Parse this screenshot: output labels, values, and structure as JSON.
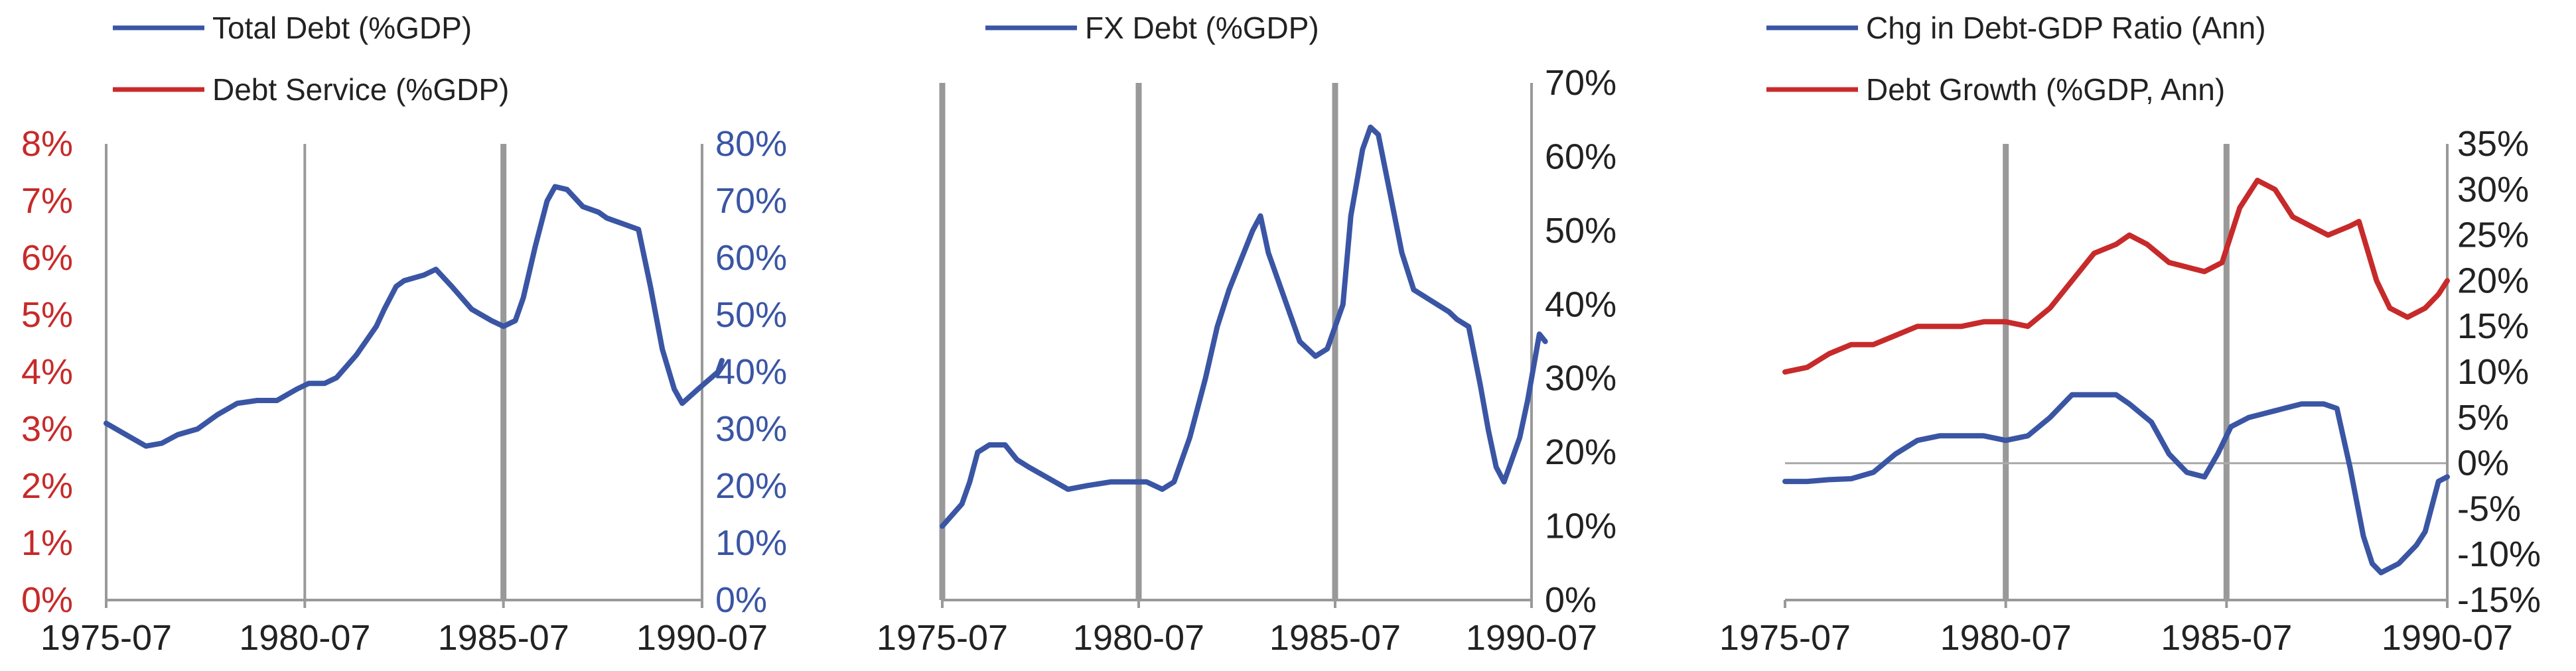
{
  "colors": {
    "blue": "#3a55a4",
    "red": "#c72a2a",
    "vline": "#999999",
    "axis": "#999999"
  },
  "chart_data": [
    {
      "type": "line",
      "legend_placement": "top",
      "x_ticks": [
        "1975-07",
        "1980-07",
        "1985-07",
        "1990-07"
      ],
      "xlim": [
        1975.5,
        1990.5
      ],
      "vlines": [
        {
          "x": 1980.5,
          "weight": "thin"
        },
        {
          "x": 1985.5,
          "weight": "thick"
        }
      ],
      "left_axis": {
        "ticks": [
          "0%",
          "1%",
          "2%",
          "3%",
          "4%",
          "5%",
          "6%",
          "7%",
          "8%"
        ],
        "ylim": [
          0,
          8
        ],
        "color": "red"
      },
      "right_axis": {
        "ticks": [
          "0%",
          "10%",
          "20%",
          "30%",
          "40%",
          "50%",
          "60%",
          "70%",
          "80%"
        ],
        "ylim": [
          0,
          80
        ],
        "color": "blue"
      },
      "series": [
        {
          "name": "Total Debt (%GDP)",
          "color": "blue",
          "axis": "right",
          "points": [
            [
              1975.5,
              31
            ],
            [
              1976.0,
              29
            ],
            [
              1976.5,
              27
            ],
            [
              1976.9,
              27.5
            ],
            [
              1977.3,
              29
            ],
            [
              1977.8,
              30
            ],
            [
              1978.3,
              32.5
            ],
            [
              1978.8,
              34.5
            ],
            [
              1979.3,
              35
            ],
            [
              1979.8,
              35
            ],
            [
              1980.3,
              37
            ],
            [
              1980.6,
              38
            ],
            [
              1981.0,
              38
            ],
            [
              1981.3,
              39
            ],
            [
              1981.8,
              43
            ],
            [
              1982.3,
              48
            ],
            [
              1982.5,
              51
            ],
            [
              1982.8,
              55
            ],
            [
              1983.0,
              56
            ],
            [
              1983.5,
              57
            ],
            [
              1983.8,
              58
            ],
            [
              1984.2,
              55
            ],
            [
              1984.7,
              51
            ],
            [
              1985.2,
              49
            ],
            [
              1985.5,
              48
            ],
            [
              1985.8,
              49
            ],
            [
              1986.0,
              53
            ],
            [
              1986.3,
              62
            ],
            [
              1986.6,
              70
            ],
            [
              1986.8,
              72.5
            ],
            [
              1987.1,
              72
            ],
            [
              1987.5,
              69
            ],
            [
              1987.9,
              68
            ],
            [
              1988.1,
              67
            ],
            [
              1988.5,
              66
            ],
            [
              1988.9,
              65
            ],
            [
              1989.2,
              55
            ],
            [
              1989.5,
              44
            ],
            [
              1989.8,
              37
            ],
            [
              1990.0,
              34.5
            ],
            [
              1990.4,
              37
            ],
            [
              1990.9,
              40
            ],
            [
              1991.0,
              42
            ]
          ]
        },
        {
          "name": "Debt Service (%GDP)",
          "color": "red",
          "axis": "left",
          "points": []
        }
      ]
    },
    {
      "type": "line",
      "legend_placement": "top",
      "x_ticks": [
        "1975-07",
        "1980-07",
        "1985-07",
        "1990-07"
      ],
      "xlim": [
        1975.5,
        1990.5
      ],
      "vlines": [
        {
          "x": 1975.5,
          "weight": "thick"
        },
        {
          "x": 1980.5,
          "weight": "thick"
        },
        {
          "x": 1985.5,
          "weight": "thick"
        }
      ],
      "right_axis": {
        "ticks": [
          "0%",
          "10%",
          "20%",
          "30%",
          "40%",
          "50%",
          "60%",
          "70%"
        ],
        "ylim": [
          0,
          70
        ],
        "color": "dark"
      },
      "series": [
        {
          "name": "FX Debt (%GDP)",
          "color": "blue",
          "axis": "right",
          "points": [
            [
              1975.5,
              10
            ],
            [
              1976.0,
              13
            ],
            [
              1976.2,
              16
            ],
            [
              1976.4,
              20
            ],
            [
              1976.7,
              21
            ],
            [
              1977.1,
              21
            ],
            [
              1977.4,
              19
            ],
            [
              1977.7,
              18
            ],
            [
              1978.2,
              16.5
            ],
            [
              1978.7,
              15
            ],
            [
              1979.2,
              15.5
            ],
            [
              1979.8,
              16
            ],
            [
              1980.3,
              16
            ],
            [
              1980.7,
              16
            ],
            [
              1981.1,
              15
            ],
            [
              1981.4,
              16
            ],
            [
              1981.8,
              22
            ],
            [
              1982.2,
              30
            ],
            [
              1982.5,
              37
            ],
            [
              1982.8,
              42
            ],
            [
              1983.1,
              46
            ],
            [
              1983.4,
              50
            ],
            [
              1983.6,
              52
            ],
            [
              1983.8,
              47
            ],
            [
              1984.2,
              41
            ],
            [
              1984.6,
              35
            ],
            [
              1985.0,
              33
            ],
            [
              1985.3,
              34
            ],
            [
              1985.7,
              40
            ],
            [
              1985.9,
              52
            ],
            [
              1986.2,
              61
            ],
            [
              1986.4,
              64
            ],
            [
              1986.6,
              63
            ],
            [
              1986.9,
              55
            ],
            [
              1987.2,
              47
            ],
            [
              1987.5,
              42
            ],
            [
              1987.8,
              41
            ],
            [
              1988.1,
              40
            ],
            [
              1988.4,
              39
            ],
            [
              1988.6,
              38
            ],
            [
              1988.9,
              37
            ],
            [
              1989.2,
              29
            ],
            [
              1989.4,
              23
            ],
            [
              1989.6,
              18
            ],
            [
              1989.8,
              16
            ],
            [
              1990.0,
              19
            ],
            [
              1990.2,
              22
            ],
            [
              1990.4,
              27
            ],
            [
              1990.6,
              33
            ],
            [
              1990.7,
              36
            ],
            [
              1990.85,
              35
            ]
          ]
        }
      ]
    },
    {
      "type": "line",
      "legend_placement": "top",
      "x_ticks": [
        "1975-07",
        "1980-07",
        "1985-07",
        "1990-07"
      ],
      "xlim": [
        1975.5,
        1990.5
      ],
      "vlines": [
        {
          "x": 1980.5,
          "weight": "thick"
        },
        {
          "x": 1985.5,
          "weight": "thick"
        }
      ],
      "zero_line": true,
      "right_axis": {
        "ticks": [
          "35%",
          "30%",
          "25%",
          "20%",
          "15%",
          "10%",
          "5%",
          "0%",
          "-5%",
          "-10%",
          "-15%"
        ],
        "ylim": [
          -15,
          35
        ],
        "color": "dark"
      },
      "series": [
        {
          "name": "Chg in Debt-GDP Ratio (Ann)",
          "color": "blue",
          "axis": "right",
          "points": [
            [
              1975.5,
              -2
            ],
            [
              1976.0,
              -2
            ],
            [
              1976.5,
              -1.8
            ],
            [
              1977.0,
              -1.7
            ],
            [
              1977.5,
              -1
            ],
            [
              1978.0,
              1
            ],
            [
              1978.5,
              2.5
            ],
            [
              1979.0,
              3
            ],
            [
              1979.5,
              3
            ],
            [
              1980.0,
              3
            ],
            [
              1980.5,
              2.5
            ],
            [
              1981.0,
              3
            ],
            [
              1981.5,
              5
            ],
            [
              1982.0,
              7.5
            ],
            [
              1982.5,
              7.5
            ],
            [
              1983.0,
              7.5
            ],
            [
              1983.3,
              6.5
            ],
            [
              1983.8,
              4.5
            ],
            [
              1984.2,
              1
            ],
            [
              1984.6,
              -1
            ],
            [
              1985.0,
              -1.5
            ],
            [
              1985.3,
              1
            ],
            [
              1985.6,
              4
            ],
            [
              1986.0,
              5
            ],
            [
              1986.4,
              5.5
            ],
            [
              1986.8,
              6
            ],
            [
              1987.2,
              6.5
            ],
            [
              1987.7,
              6.5
            ],
            [
              1988.0,
              6
            ],
            [
              1988.3,
              -0.5
            ],
            [
              1988.6,
              -8
            ],
            [
              1988.8,
              -11
            ],
            [
              1989.0,
              -12
            ],
            [
              1989.4,
              -11
            ],
            [
              1989.8,
              -9
            ],
            [
              1990.0,
              -7.5
            ],
            [
              1990.3,
              -2
            ],
            [
              1990.5,
              -1.5
            ]
          ]
        },
        {
          "name": "Debt Growth (%GDP, Ann)",
          "color": "red",
          "axis": "right",
          "points": [
            [
              1975.5,
              10
            ],
            [
              1976.0,
              10.5
            ],
            [
              1976.5,
              12
            ],
            [
              1977.0,
              13
            ],
            [
              1977.5,
              13
            ],
            [
              1978.0,
              14
            ],
            [
              1978.5,
              15
            ],
            [
              1979.0,
              15
            ],
            [
              1979.5,
              15
            ],
            [
              1980.0,
              15.5
            ],
            [
              1980.5,
              15.5
            ],
            [
              1981.0,
              15
            ],
            [
              1981.5,
              17
            ],
            [
              1982.0,
              20
            ],
            [
              1982.5,
              23
            ],
            [
              1983.0,
              24
            ],
            [
              1983.3,
              25
            ],
            [
              1983.7,
              24
            ],
            [
              1984.2,
              22
            ],
            [
              1984.6,
              21.5
            ],
            [
              1985.0,
              21
            ],
            [
              1985.4,
              22
            ],
            [
              1985.8,
              28
            ],
            [
              1986.2,
              31
            ],
            [
              1986.6,
              30
            ],
            [
              1987.0,
              27
            ],
            [
              1987.4,
              26
            ],
            [
              1987.8,
              25
            ],
            [
              1988.3,
              26
            ],
            [
              1988.5,
              26.5
            ],
            [
              1988.9,
              20
            ],
            [
              1989.2,
              17
            ],
            [
              1989.6,
              16
            ],
            [
              1990.0,
              17
            ],
            [
              1990.3,
              18.5
            ],
            [
              1990.5,
              20
            ]
          ]
        }
      ]
    }
  ]
}
